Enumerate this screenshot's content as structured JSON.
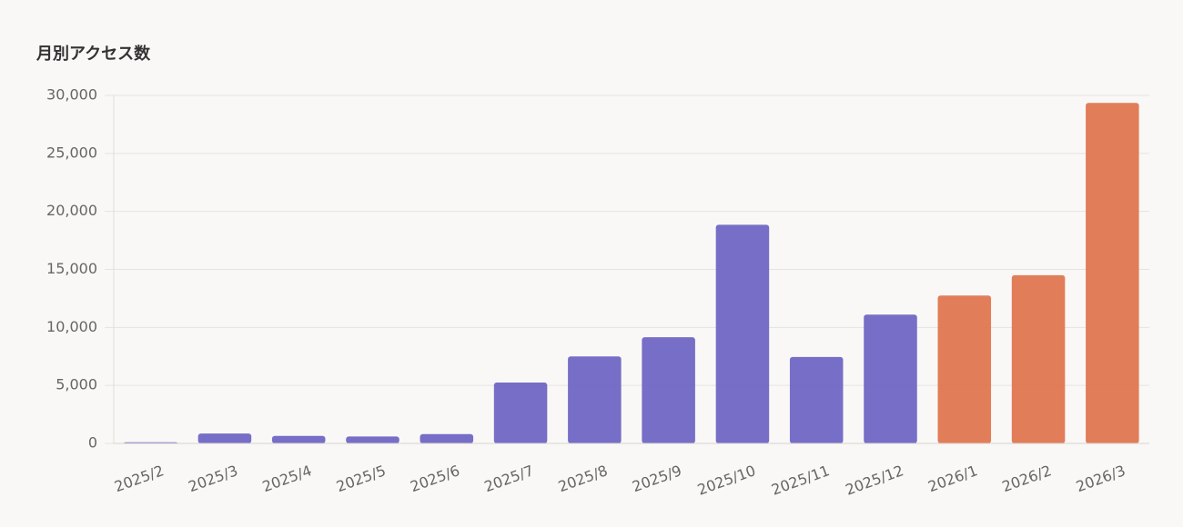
{
  "chart_data": {
    "type": "bar",
    "title": "月別アクセス数",
    "categories": [
      "2025/2",
      "2025/3",
      "2025/4",
      "2025/5",
      "2025/6",
      "2025/7",
      "2025/8",
      "2025/9",
      "2025/10",
      "2025/11",
      "2025/12",
      "2026/1",
      "2026/2",
      "2026/3"
    ],
    "values": [
      100,
      850,
      650,
      600,
      800,
      5250,
      7500,
      9150,
      18850,
      7450,
      11100,
      12750,
      14500,
      29350
    ],
    "colors": [
      "#7066c4",
      "#7066c4",
      "#7066c4",
      "#7066c4",
      "#7066c4",
      "#7066c4",
      "#7066c4",
      "#7066c4",
      "#7066c4",
      "#7066c4",
      "#7066c4",
      "#e07650",
      "#e07650",
      "#e07650"
    ],
    "ylim": [
      0,
      30000
    ],
    "yticks": [
      0,
      {
        "value": 5000,
        "label": "5,000"
      },
      {
        "value": 10000,
        "label": "10,000"
      },
      {
        "value": 15000,
        "label": "15,000"
      },
      {
        "value": 20000,
        "label": "20,000"
      },
      {
        "value": 25000,
        "label": "25,000"
      },
      {
        "value": 30000,
        "label": "30,000"
      }
    ],
    "grid": true
  }
}
